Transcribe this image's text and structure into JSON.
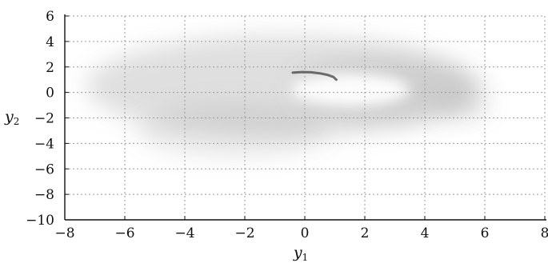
{
  "chart_data": {
    "type": "heatmap",
    "title": "",
    "xlabel": "y",
    "xlabel_subscript": "1",
    "ylabel": "y",
    "ylabel_subscript": "2",
    "xlim": [
      -8,
      8
    ],
    "ylim": [
      -10,
      6
    ],
    "xticks": [
      -8,
      -6,
      -4,
      -2,
      0,
      2,
      4,
      6,
      8
    ],
    "yticks": [
      -10,
      -8,
      -6,
      -4,
      -2,
      0,
      2,
      4,
      6
    ],
    "xtick_labels": [
      "−8",
      "−6",
      "−4",
      "−2",
      "0",
      "2",
      "4",
      "6",
      "8"
    ],
    "ytick_labels": [
      "−10",
      "−8",
      "−6",
      "−4",
      "−2",
      "0",
      "2",
      "4",
      "6"
    ],
    "grid": true,
    "grid_style": "dotted",
    "density_color": "#8c8c8c",
    "trajectory_color": "#555555",
    "density_blobs": [
      {
        "cx": -0.8,
        "cy": 0.5,
        "rx": 6.5,
        "ry": 4.0,
        "opacity": 0.28,
        "blur": 0.55
      },
      {
        "cx": -2.4,
        "cy": -3.0,
        "rx": 3.2,
        "ry": 2.1,
        "opacity": 0.18,
        "blur": 0.6
      },
      {
        "cx": 2.8,
        "cy": 0.2,
        "rx": 3.2,
        "ry": 2.7,
        "opacity": 0.2,
        "blur": 0.55
      },
      {
        "cx": 5.3,
        "cy": -1.0,
        "rx": 0.9,
        "ry": 1.2,
        "opacity": 0.18,
        "blur": 0.5
      }
    ],
    "density_hole": {
      "cx": 1.5,
      "cy": 0.2,
      "rx": 2.0,
      "ry": 1.3
    },
    "trajectory": {
      "x": [
        -0.4,
        -0.1,
        0.2,
        0.5,
        0.75,
        0.95,
        1.05
      ],
      "y": [
        1.55,
        1.6,
        1.58,
        1.5,
        1.38,
        1.22,
        1.0
      ]
    }
  }
}
